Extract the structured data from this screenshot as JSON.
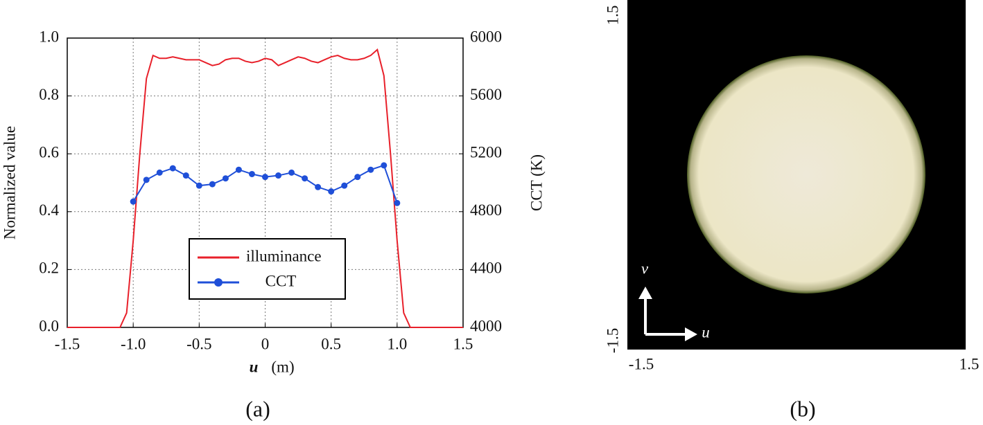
{
  "chart_data": {
    "type": "line",
    "x_label_var": "u",
    "x_label_unit": "(m)",
    "y_label": "Normalized value",
    "y2_label": "CCT (K)",
    "xlim": [
      -1.5,
      1.5
    ],
    "xticks": [
      -1.5,
      {
        "value": -1,
        "label": "-1.0"
      },
      -0.5,
      0,
      0.5,
      {
        "value": 1,
        "label": "1.0"
      },
      1.5
    ],
    "ylim": [
      0,
      1
    ],
    "yticks": [
      {
        "value": 0,
        "label": "0.0"
      },
      0.2,
      0.4,
      0.6,
      0.8,
      {
        "value": 1,
        "label": "1.0"
      }
    ],
    "y2lim": [
      4000,
      6000
    ],
    "y2ticks": [
      4000,
      4400,
      4800,
      5200,
      5600,
      6000
    ],
    "grid": true,
    "series": [
      {
        "name": "illuminance",
        "color": "#e8202a",
        "x": [
          -1.5,
          -1.1,
          -1.05,
          -1.0,
          -0.95,
          -0.9,
          -0.85,
          -0.8,
          -0.75,
          -0.7,
          -0.65,
          -0.6,
          -0.55,
          -0.5,
          -0.45,
          -0.4,
          -0.35,
          -0.3,
          -0.25,
          -0.2,
          -0.15,
          -0.1,
          -0.05,
          0,
          0.05,
          0.1,
          0.15,
          0.2,
          0.25,
          0.3,
          0.35,
          0.4,
          0.45,
          0.5,
          0.55,
          0.6,
          0.65,
          0.7,
          0.75,
          0.8,
          0.85,
          0.9,
          0.95,
          1.0,
          1.05,
          1.1,
          1.5
        ],
        "values": [
          0,
          0,
          0.05,
          0.3,
          0.6,
          0.86,
          0.94,
          0.93,
          0.93,
          0.935,
          0.93,
          0.925,
          0.925,
          0.925,
          0.915,
          0.905,
          0.91,
          0.925,
          0.93,
          0.93,
          0.92,
          0.915,
          0.92,
          0.93,
          0.925,
          0.905,
          0.915,
          0.925,
          0.935,
          0.93,
          0.92,
          0.915,
          0.925,
          0.935,
          0.94,
          0.93,
          0.925,
          0.925,
          0.93,
          0.94,
          0.96,
          0.87,
          0.6,
          0.3,
          0.05,
          0,
          0
        ]
      },
      {
        "name": "CCT",
        "color": "#1f4fd8",
        "axis": "y2",
        "x": [
          -1.0,
          -0.9,
          -0.8,
          -0.7,
          -0.6,
          -0.5,
          -0.4,
          -0.3,
          -0.2,
          -0.1,
          0,
          0.1,
          0.2,
          0.3,
          0.4,
          0.5,
          0.6,
          0.7,
          0.8,
          0.9,
          1.0
        ],
        "values": [
          4870,
          5020,
          5070,
          5100,
          5050,
          4980,
          4990,
          5030,
          5090,
          5060,
          5040,
          5050,
          5070,
          5030,
          4970,
          4940,
          4980,
          5040,
          5090,
          5120,
          4860
        ]
      }
    ]
  },
  "panel_a_label": "(a)",
  "panel_b": {
    "label": "(b)",
    "x_labels": [
      "-1.5",
      "1.5"
    ],
    "y_labels": [
      "1.5",
      "-1.5"
    ],
    "axis_u": "u",
    "axis_v": "v"
  }
}
